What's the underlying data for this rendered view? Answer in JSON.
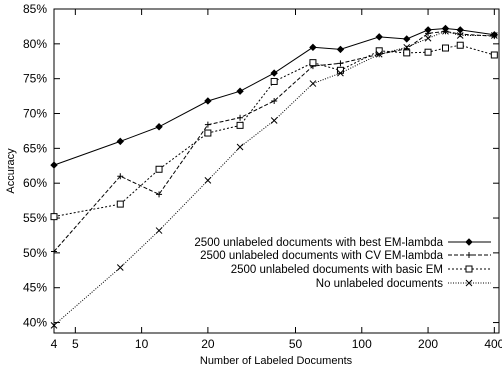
{
  "chart_data": {
    "type": "line",
    "title": "",
    "xlabel": "Number of Labeled Documents",
    "ylabel": "Accuracy",
    "xscale": "log",
    "xlim": [
      4,
      420
    ],
    "ylim": [
      0.385,
      0.85
    ],
    "xticks": [
      4,
      5,
      10,
      20,
      50,
      100,
      200,
      400
    ],
    "xtick_labels": [
      "4",
      "5",
      "10",
      "20",
      "50",
      "100",
      "200",
      "400"
    ],
    "yticks": [
      0.4,
      0.45,
      0.5,
      0.55,
      0.6,
      0.65,
      0.7,
      0.75,
      0.8,
      0.85
    ],
    "ytick_labels": [
      "40%",
      "45%",
      "50%",
      "55%",
      "60%",
      "65%",
      "70%",
      "75%",
      "80%",
      "85%"
    ],
    "grid": false,
    "legend_position": "lower-right",
    "series": [
      {
        "name": "2500 unlabeled documents with best EM-lambda",
        "marker": "diamond",
        "line_style": "solid",
        "x": [
          4,
          8,
          12,
          20,
          28,
          40,
          60,
          80,
          120,
          160,
          200,
          240,
          280,
          400
        ],
        "y": [
          0.626,
          0.66,
          0.681,
          0.718,
          0.732,
          0.758,
          0.795,
          0.792,
          0.81,
          0.807,
          0.82,
          0.822,
          0.82,
          0.813
        ]
      },
      {
        "name": "2500 unlabeled documents with CV EM-lambda",
        "marker": "plus",
        "line_style": "dashed",
        "x": [
          4,
          8,
          12,
          20,
          28,
          40,
          60,
          80,
          120,
          160,
          200,
          240,
          280,
          400
        ],
        "y": [
          0.502,
          0.61,
          0.584,
          0.684,
          0.694,
          0.718,
          0.768,
          0.772,
          0.785,
          0.793,
          0.815,
          0.818,
          0.814,
          0.811
        ]
      },
      {
        "name": "2500 unlabeled documents with basic EM",
        "marker": "square",
        "line_style": "dotted",
        "x": [
          4,
          8,
          12,
          20,
          28,
          40,
          60,
          80,
          120,
          160,
          200,
          240,
          280,
          400
        ],
        "y": [
          0.552,
          0.57,
          0.62,
          0.672,
          0.683,
          0.746,
          0.773,
          0.762,
          0.79,
          0.787,
          0.788,
          0.794,
          0.798,
          0.784
        ]
      },
      {
        "name": "No unlabeled documents",
        "marker": "x",
        "line_style": "dotted-fine",
        "x": [
          4,
          8,
          12,
          20,
          28,
          40,
          60,
          80,
          120,
          160,
          200,
          240,
          280,
          400
        ],
        "y": [
          0.396,
          0.479,
          0.532,
          0.604,
          0.652,
          0.69,
          0.743,
          0.758,
          0.785,
          0.795,
          0.808,
          0.818,
          0.812,
          0.812
        ]
      }
    ]
  }
}
